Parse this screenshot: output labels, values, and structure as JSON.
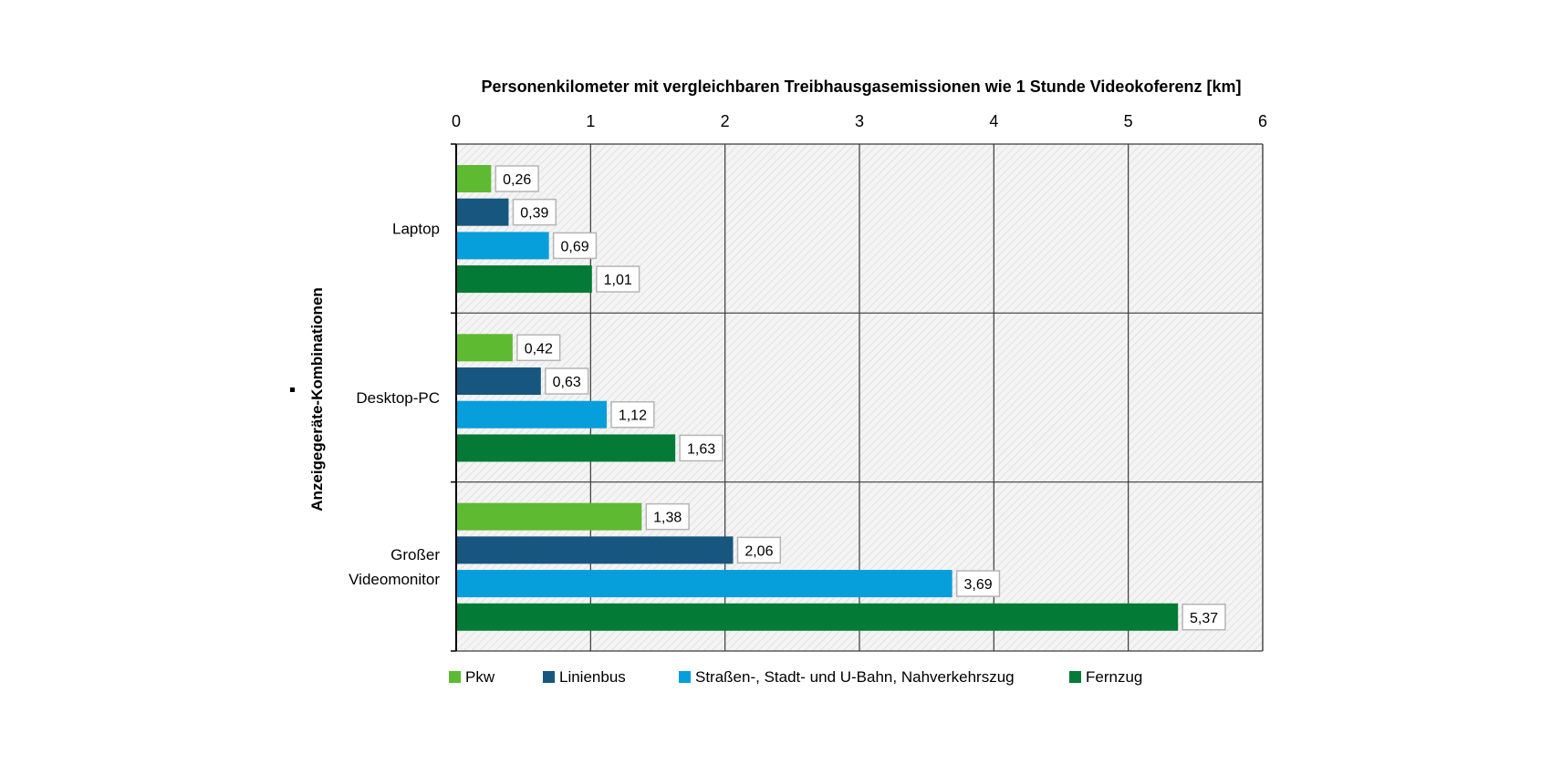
{
  "chart_data": {
    "type": "bar",
    "orientation": "horizontal",
    "title": "Personenkilometer mit vergleichbaren Treibhausgasemissionen  wie 1 Stunde Videokoferenz [km]",
    "ylabel": "Anzeigegeräte-Kombinationen",
    "xlim": [
      0,
      6
    ],
    "xticks": [
      "0",
      "1",
      "2",
      "3",
      "4",
      "5",
      "6"
    ],
    "grid": true,
    "legend_position": "bottom",
    "categories": [
      {
        "lines": [
          "Laptop"
        ]
      },
      {
        "lines": [
          "Desktop-PC"
        ]
      },
      {
        "lines": [
          "Großer",
          "Videomonitor"
        ]
      }
    ],
    "series": [
      {
        "name": "Pkw",
        "color": "#5eba30",
        "values": [
          0.26,
          0.42,
          1.38
        ],
        "labels": [
          "0,26",
          "0,42",
          "1,38"
        ]
      },
      {
        "name": "Linienbus",
        "color": "#17577f",
        "values": [
          0.39,
          0.63,
          2.06
        ],
        "labels": [
          "0,39",
          "0,63",
          "2,06"
        ]
      },
      {
        "name": "Straßen-, Stadt- und U-Bahn, Nahverkehrszug",
        "color": "#069edb",
        "values": [
          0.69,
          1.12,
          3.69
        ],
        "labels": [
          "0,69",
          "1,12",
          "3,69"
        ]
      },
      {
        "name": "Fernzug",
        "color": "#037a35",
        "values": [
          1.01,
          1.63,
          5.37
        ],
        "labels": [
          "1,01",
          "1,63",
          "5,37"
        ]
      }
    ]
  }
}
